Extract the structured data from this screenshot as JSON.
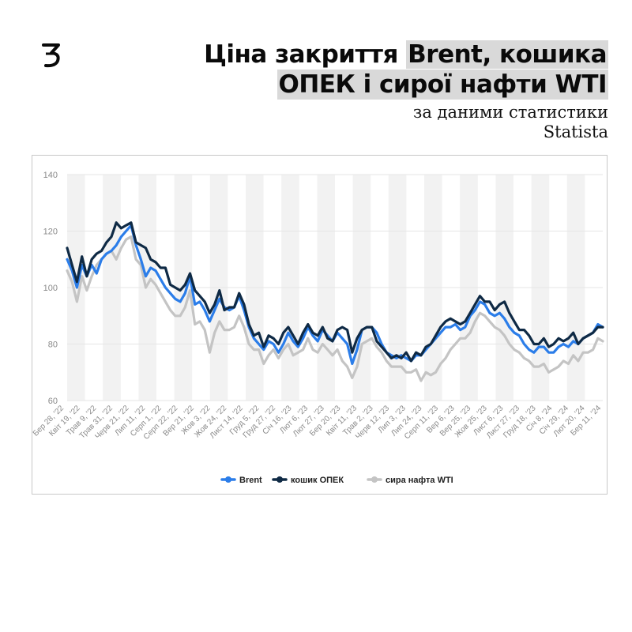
{
  "header": {
    "title_line1_plain": "Ціна закриття ",
    "title_line1_highlight": "Brent, кошика",
    "title_line2_highlight": "ОПЕК і сирої нафти WTI",
    "subtitle_line1": "за даними статистики",
    "subtitle_line2": "Statista"
  },
  "colors": {
    "brent": "#2b7de9",
    "opec": "#0f2a45",
    "wti": "#c4c4c4",
    "stripe": "#f2f2f2"
  },
  "chart_data": {
    "type": "line",
    "title": "",
    "xlabel": "",
    "ylabel": "",
    "ylim": [
      60,
      140
    ],
    "yticks": [
      60,
      80,
      100,
      120,
      140
    ],
    "tick_labels": [
      "Бер 28, '22",
      "Квіт 19, '22",
      "Трав 9, '22",
      "Трав 31, '22",
      "Черв 21, '22",
      "Лип 11, '22",
      "Серп 1, '22",
      "Серп 22, '22",
      "Вер 21, '22",
      "Жов 3, '22",
      "Жов 24, '22",
      "Лист 14, '22",
      "Груд 5, '22",
      "Груд 27, '22",
      "Січ 16, '23",
      "Лют 6, '23",
      "Лют 27, '23",
      "Бер 20, '23",
      "Квіт 11, '23",
      "Трав 2, '23",
      "Черв 12, '23",
      "Лип 3, '23",
      "Лип 24, '23",
      "Серп 11, '23",
      "Вер 6, '23",
      "Вер 25, '23",
      "Жов 25, '23",
      "Лист 6, '23",
      "Лист 27, '23",
      "Груд 18, '23",
      "Січ 8, '24",
      "Січ 29, '24",
      "Лют 20, '24",
      "Бер 11, '24"
    ],
    "legend_position": "bottom",
    "series": [
      {
        "name": "Brent",
        "values": [
          110,
          106,
          100,
          108,
          104,
          108,
          105,
          110,
          112,
          113,
          115,
          118,
          120,
          122,
          115,
          110,
          104,
          107,
          106,
          103,
          100,
          98,
          96,
          95,
          98,
          104,
          94,
          95,
          92,
          88,
          92,
          96,
          93,
          92,
          93,
          97,
          92,
          86,
          82,
          80,
          78,
          81,
          80,
          77,
          80,
          84,
          81,
          79,
          82,
          86,
          83,
          81,
          85,
          83,
          81,
          84,
          82,
          80,
          73,
          78,
          85,
          86,
          86,
          84,
          80,
          77,
          76,
          75,
          76,
          75,
          74,
          76,
          76,
          78,
          80,
          82,
          84,
          86,
          86,
          87,
          85,
          86,
          90,
          92,
          95,
          94,
          91,
          90,
          91,
          89,
          86,
          84,
          83,
          80,
          78,
          77,
          79,
          79,
          77,
          77,
          79,
          80,
          79,
          81,
          80,
          82,
          83,
          84,
          87,
          86
        ]
      },
      {
        "name": "кошик ОПЕК",
        "values": [
          114,
          108,
          102,
          111,
          104,
          110,
          112,
          113,
          116,
          118,
          123,
          121,
          122,
          123,
          116,
          115,
          114,
          110,
          109,
          107,
          107,
          101,
          100,
          99,
          101,
          105,
          99,
          97,
          95,
          91,
          94,
          99,
          92,
          93,
          93,
          98,
          94,
          87,
          83,
          84,
          79,
          83,
          82,
          80,
          84,
          86,
          83,
          80,
          84,
          87,
          84,
          83,
          86,
          82,
          81,
          85,
          86,
          85,
          77,
          82,
          85,
          86,
          86,
          81,
          79,
          77,
          75,
          76,
          75,
          77,
          74,
          77,
          76,
          79,
          80,
          83,
          86,
          88,
          89,
          88,
          87,
          88,
          91,
          94,
          97,
          95,
          95,
          92,
          94,
          95,
          91,
          88,
          85,
          85,
          83,
          80,
          80,
          82,
          79,
          80,
          82,
          81,
          82,
          84,
          80,
          82,
          83,
          84,
          86,
          86
        ]
      },
      {
        "name": "сира нафта WTI",
        "values": [
          106,
          102,
          95,
          104,
          99,
          104,
          108,
          110,
          112,
          113,
          110,
          114,
          117,
          118,
          110,
          108,
          100,
          103,
          101,
          98,
          95,
          92,
          90,
          90,
          93,
          99,
          87,
          88,
          85,
          77,
          84,
          88,
          85,
          85,
          86,
          90,
          86,
          80,
          78,
          78,
          73,
          76,
          78,
          75,
          78,
          80,
          76,
          77,
          78,
          82,
          78,
          77,
          80,
          78,
          76,
          78,
          74,
          72,
          68,
          72,
          80,
          81,
          82,
          79,
          77,
          74,
          72,
          72,
          72,
          70,
          70,
          71,
          67,
          70,
          69,
          70,
          73,
          75,
          78,
          80,
          82,
          82,
          84,
          88,
          91,
          90,
          88,
          86,
          85,
          83,
          80,
          78,
          77,
          75,
          74,
          72,
          72,
          73,
          70,
          71,
          72,
          74,
          73,
          76,
          74,
          77,
          77,
          78,
          82,
          81
        ]
      }
    ]
  }
}
